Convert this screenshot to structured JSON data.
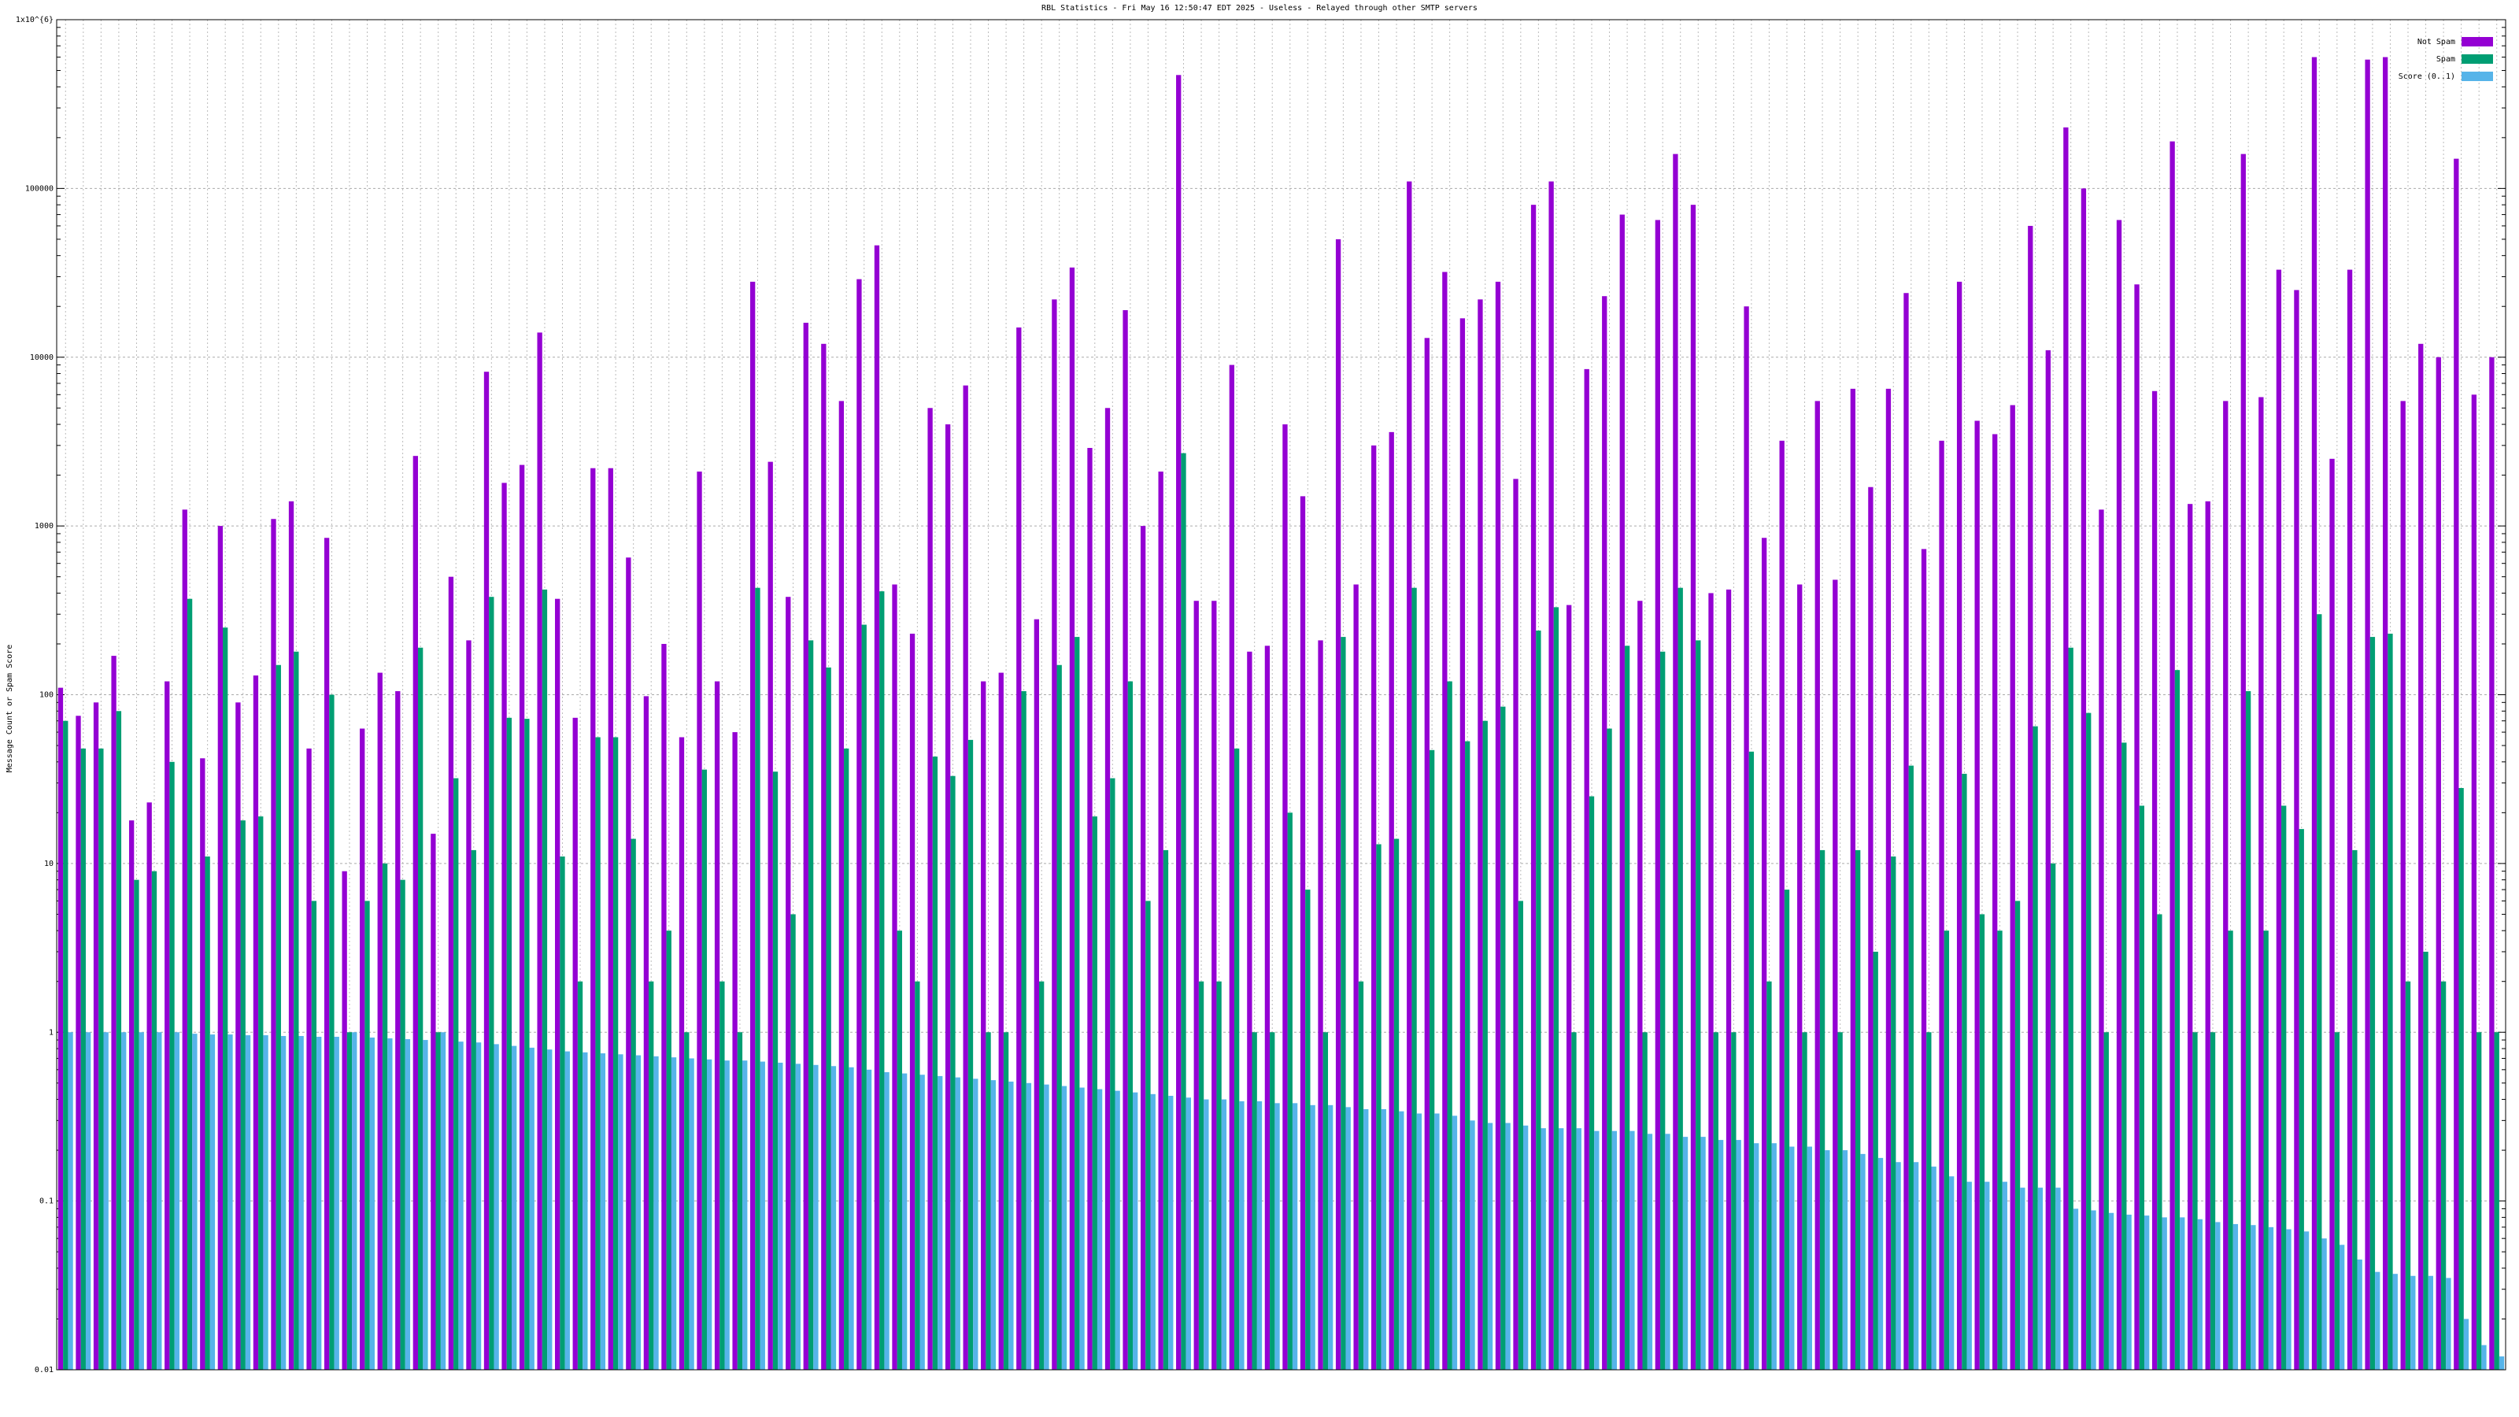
{
  "chart_data": {
    "type": "bar",
    "title": "RBL Statistics - Fri May 16 12:50:47 EDT 2025 - Useless - Relayed through other SMTP servers",
    "y_label": "Message Count or Spam Score",
    "log_y": true,
    "grid": true,
    "legend": "top-right",
    "ylim": [
      0.01,
      1000000
    ],
    "yticks": [
      0.01,
      0.1,
      1,
      10,
      100,
      1000,
      10000,
      100000,
      {
        "value": 1000000,
        "label": "1x10^{6}"
      }
    ],
    "categories": [
      null,
      null,
      null,
      null,
      null,
      null,
      null,
      null,
      null,
      null,
      null,
      null,
      null,
      null,
      null,
      null,
      null,
      null,
      null,
      null,
      null,
      null,
      null,
      null,
      null,
      null,
      null,
      null,
      null,
      null,
      null,
      null,
      null,
      null,
      null,
      null,
      null,
      null,
      null,
      null,
      null,
      null,
      null,
      null,
      null,
      null,
      null,
      null,
      null,
      null,
      null,
      null,
      null,
      null,
      null,
      null,
      null,
      null,
      null,
      null,
      null,
      null,
      null,
      null,
      null,
      null,
      null,
      null,
      null,
      null,
      null,
      null,
      null,
      null,
      null,
      null,
      null,
      null,
      null,
      null,
      null,
      null,
      null,
      null,
      null,
      null,
      null,
      null,
      null,
      null,
      null,
      null,
      null,
      null,
      null,
      null,
      null,
      null,
      null,
      null,
      null,
      null,
      null,
      null,
      null,
      null,
      null,
      null,
      null,
      null,
      null,
      null,
      null,
      null,
      null,
      null,
      null,
      null,
      null,
      null,
      null,
      null,
      null,
      null,
      null,
      null,
      null,
      null,
      null,
      null,
      null,
      null,
      null,
      null,
      null,
      null,
      null,
      null
    ],
    "series": [
      {
        "name": "Not Spam",
        "color": "#9400d3",
        "values": [
          110,
          75,
          90,
          170,
          18,
          23,
          120,
          1250,
          42,
          1000,
          90,
          130,
          1100,
          1400,
          48,
          850,
          9,
          63,
          135,
          105,
          2600,
          15,
          500,
          210,
          8200,
          1800,
          2300,
          14000,
          370,
          73,
          2200,
          2200,
          650,
          98,
          200,
          56,
          2100,
          120,
          60,
          28000,
          2400,
          380,
          16000,
          12000,
          5500,
          29000,
          46000,
          450,
          230,
          5000,
          4000,
          6800,
          120,
          135,
          15000,
          280,
          22000,
          34000,
          2900,
          5000,
          19000,
          1000,
          2100,
          470000,
          360,
          360,
          9000,
          180,
          195,
          4000,
          1500,
          210,
          50000,
          450,
          3000,
          3600,
          110000,
          13000,
          32000,
          17000,
          22000,
          28000,
          1900,
          80000,
          110000,
          340,
          8500,
          23000,
          70000,
          360,
          65000,
          160000,
          80000,
          400,
          420,
          20000,
          850,
          3200,
          450,
          5500,
          480,
          6500,
          1700,
          6500,
          24000,
          730,
          3200,
          28000,
          4200,
          3500,
          5200,
          60000,
          11000,
          230000,
          100000,
          1250,
          65000,
          27000,
          6300,
          190000,
          1350,
          1400,
          5500,
          160000,
          5800,
          33000,
          25000,
          600000,
          2500,
          33000,
          580000,
          600000,
          5500,
          12000,
          10000,
          150000,
          6000,
          10000
        ]
      },
      {
        "name": "Spam",
        "color": "#009e73",
        "values": [
          70,
          48,
          48,
          80,
          8,
          9,
          40,
          370,
          11,
          250,
          18,
          19,
          150,
          180,
          6,
          100,
          1,
          6,
          10,
          8,
          190,
          1,
          32,
          12,
          380,
          73,
          72,
          420,
          11,
          2,
          56,
          56,
          14,
          2,
          4,
          1,
          36,
          2,
          1,
          430,
          35,
          5,
          210,
          145,
          48,
          260,
          410,
          4,
          2,
          43,
          33,
          54,
          1,
          1,
          105,
          2,
          150,
          220,
          19,
          32,
          120,
          6,
          12,
          2700,
          2,
          2,
          48,
          1,
          1,
          20,
          7,
          1,
          220,
          2,
          13,
          14,
          430,
          47,
          120,
          53,
          70,
          85,
          6,
          240,
          330,
          1,
          25,
          63,
          195,
          1,
          180,
          430,
          210,
          1,
          1,
          46,
          2,
          7,
          1,
          12,
          1,
          12,
          3,
          11,
          38,
          1,
          4,
          34,
          5,
          4,
          6,
          65,
          10,
          190,
          78,
          1,
          52,
          22,
          5,
          140,
          1,
          1,
          4,
          105,
          4,
          22,
          16,
          300,
          1,
          12,
          220,
          230,
          2,
          3,
          2,
          28,
          1,
          1
        ]
      },
      {
        "name": "Score (0..1)",
        "color": "#56b4e9",
        "values": [
          1,
          1,
          1,
          1,
          1,
          1,
          1,
          0.98,
          0.97,
          0.97,
          0.96,
          0.96,
          0.95,
          0.95,
          0.94,
          0.94,
          1,
          0.93,
          0.92,
          0.91,
          0.9,
          1,
          0.88,
          0.87,
          0.85,
          0.83,
          0.81,
          0.79,
          0.77,
          0.76,
          0.75,
          0.74,
          0.73,
          0.72,
          0.71,
          0.7,
          0.69,
          0.68,
          0.68,
          0.67,
          0.66,
          0.65,
          0.64,
          0.63,
          0.62,
          0.6,
          0.58,
          0.57,
          0.56,
          0.55,
          0.54,
          0.53,
          0.52,
          0.51,
          0.5,
          0.49,
          0.48,
          0.47,
          0.46,
          0.45,
          0.44,
          0.43,
          0.42,
          0.41,
          0.4,
          0.4,
          0.39,
          0.39,
          0.38,
          0.38,
          0.37,
          0.37,
          0.36,
          0.35,
          0.35,
          0.34,
          0.33,
          0.33,
          0.32,
          0.3,
          0.29,
          0.29,
          0.28,
          0.27,
          0.27,
          0.27,
          0.26,
          0.26,
          0.26,
          0.25,
          0.25,
          0.24,
          0.24,
          0.23,
          0.23,
          0.22,
          0.22,
          0.21,
          0.21,
          0.2,
          0.2,
          0.19,
          0.18,
          0.17,
          0.17,
          0.16,
          0.14,
          0.13,
          0.13,
          0.13,
          0.12,
          0.12,
          0.12,
          0.09,
          0.088,
          0.085,
          0.083,
          0.082,
          0.08,
          0.08,
          0.078,
          0.075,
          0.073,
          0.072,
          0.07,
          0.068,
          0.066,
          0.06,
          0.055,
          0.045,
          0.038,
          0.037,
          0.036,
          0.036,
          0.035,
          0.02,
          0.014,
          0.012
        ]
      }
    ]
  }
}
